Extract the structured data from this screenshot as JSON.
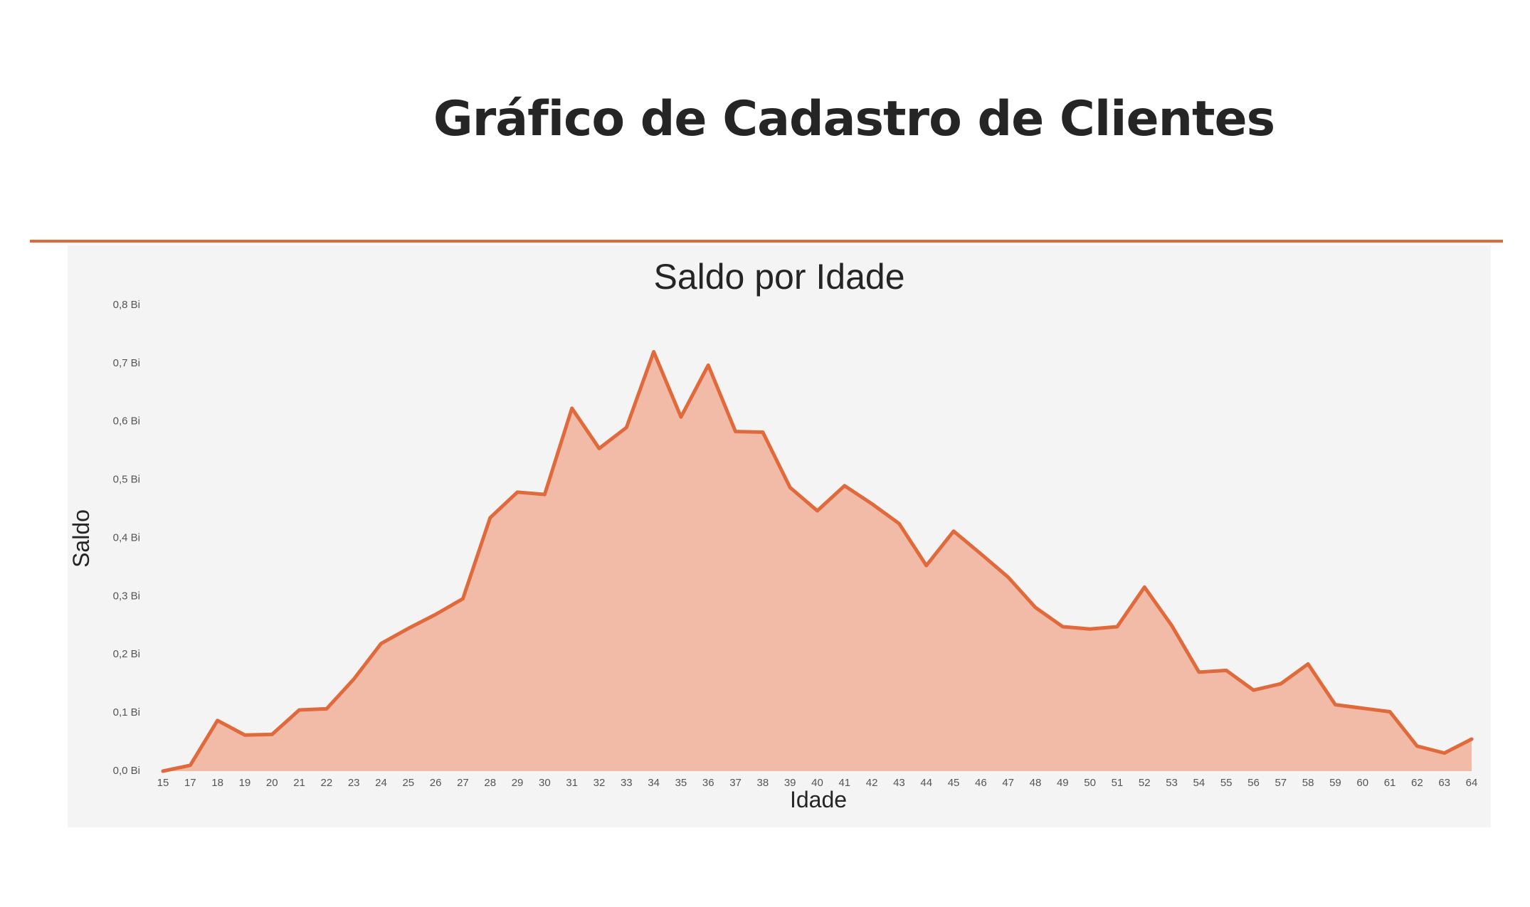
{
  "page": {
    "title": "Gráfico de Cadastro de Clientes"
  },
  "colors": {
    "accent": "#e16a3c",
    "area_fill": "#f1bba8",
    "card_background": "#f4f4f4"
  },
  "chart_data": {
    "type": "area",
    "title": "Saldo por Idade",
    "xlabel": "Idade",
    "ylabel": "Saldo",
    "grid": false,
    "ylim": [
      0,
      0.8
    ],
    "y_unit": "Bi",
    "y_ticks": [
      {
        "value": 0.0,
        "label": "0,0 Bi"
      },
      {
        "value": 0.1,
        "label": "0,1 Bi"
      },
      {
        "value": 0.2,
        "label": "0,2 Bi"
      },
      {
        "value": 0.3,
        "label": "0,3 Bi"
      },
      {
        "value": 0.4,
        "label": "0,4 Bi"
      },
      {
        "value": 0.5,
        "label": "0,5 Bi"
      },
      {
        "value": 0.6,
        "label": "0,6 Bi"
      },
      {
        "value": 0.7,
        "label": "0,7 Bi"
      },
      {
        "value": 0.8,
        "label": "0,8 Bi"
      }
    ],
    "categories": [
      "15",
      "17",
      "18",
      "19",
      "20",
      "21",
      "22",
      "23",
      "24",
      "25",
      "26",
      "27",
      "28",
      "29",
      "30",
      "31",
      "32",
      "33",
      "34",
      "35",
      "36",
      "37",
      "38",
      "39",
      "40",
      "41",
      "42",
      "43",
      "44",
      "45",
      "46",
      "47",
      "48",
      "49",
      "50",
      "51",
      "52",
      "53",
      "54",
      "55",
      "56",
      "57",
      "58",
      "59",
      "60",
      "61",
      "62",
      "63",
      "64"
    ],
    "series": [
      {
        "values": [
          0.0,
          0.01,
          0.087,
          0.062,
          0.063,
          0.105,
          0.107,
          0.158,
          0.219,
          0.245,
          0.269,
          0.296,
          0.435,
          0.479,
          0.475,
          0.623,
          0.554,
          0.59,
          0.72,
          0.608,
          0.697,
          0.583,
          0.582,
          0.487,
          0.447,
          0.49,
          0.459,
          0.425,
          0.353,
          0.412,
          0.373,
          0.333,
          0.281,
          0.248,
          0.244,
          0.248,
          0.316,
          0.25,
          0.17,
          0.173,
          0.139,
          0.15,
          0.184,
          0.114,
          0.108,
          0.102,
          0.043,
          0.031,
          0.055
        ]
      }
    ]
  }
}
